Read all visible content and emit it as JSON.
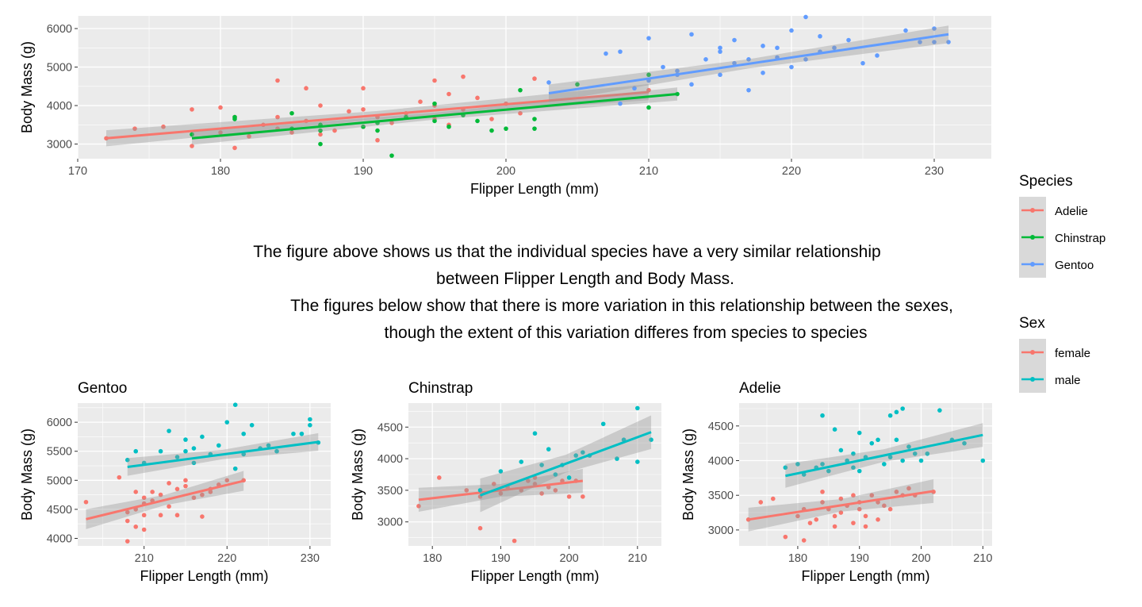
{
  "colors": {
    "panel_bg": "#EBEBEB",
    "grid": "#FFFFFF",
    "ribbon": "#999999",
    "tick": "#4D4D4D",
    "Adelie": "#F8766D",
    "Chinstrap": "#00BA38",
    "Gentoo": "#619CFF",
    "female": "#F8766D",
    "male": "#00BFC4"
  },
  "caption": {
    "lines": [
      "The figure above shows us that the individual species have a very similar relationship",
      "between Flipper Length and Body Mass.",
      "The figures below show that there is more variation in this relationship between the sexes,",
      "though the extent of this variation differes from species to species"
    ]
  },
  "legends": {
    "species": {
      "title": "Species",
      "items": [
        "Adelie",
        "Chinstrap",
        "Gentoo"
      ]
    },
    "sex": {
      "title": "Sex",
      "items": [
        "female",
        "male"
      ]
    }
  },
  "chart_data": [
    {
      "type": "scatter",
      "title": "",
      "xlabel": "Flipper Length (mm)",
      "ylabel": "Body Mass (g)",
      "xlim": [
        170,
        234
      ],
      "ylim": [
        2620,
        6330
      ],
      "xticks": [
        170,
        180,
        190,
        200,
        210,
        220,
        230
      ],
      "yticks": [
        3000,
        4000,
        5000,
        6000
      ],
      "grid": true,
      "legend": "right",
      "series": [
        {
          "name": "Adelie",
          "color_key": "Adelie",
          "trend": [
            [
              172,
              3150
            ],
            [
              210,
              4350
            ]
          ],
          "band": 110,
          "x": [
            172,
            174,
            176,
            178,
            178,
            180,
            180,
            181,
            181,
            182,
            183,
            184,
            184,
            184,
            185,
            186,
            186,
            187,
            187,
            188,
            189,
            190,
            190,
            190,
            191,
            191,
            192,
            193,
            194,
            195,
            195,
            195,
            196,
            196,
            197,
            197,
            198,
            199,
            200,
            201,
            202,
            210
          ],
          "y": [
            3150,
            3400,
            3450,
            3900,
            2950,
            3950,
            3300,
            3700,
            2900,
            3200,
            3500,
            3400,
            4650,
            3700,
            3300,
            4450,
            3600,
            3250,
            4000,
            3350,
            3850,
            3900,
            3450,
            4450,
            3700,
            3100,
            3550,
            3800,
            4100,
            3650,
            4650,
            4000,
            4300,
            3500,
            4750,
            3900,
            4200,
            3650,
            4050,
            3800,
            4700,
            4400
          ]
        },
        {
          "name": "Chinstrap",
          "color_key": "Chinstrap",
          "trend": [
            [
              178,
              3150
            ],
            [
              212,
              4300
            ]
          ],
          "band": 90,
          "x": [
            178,
            181,
            181,
            185,
            185,
            187,
            187,
            187,
            190,
            191,
            191,
            192,
            193,
            195,
            195,
            196,
            197,
            198,
            199,
            200,
            201,
            202,
            202,
            205,
            210,
            210,
            212
          ],
          "y": [
            3250,
            3700,
            3650,
            3800,
            3400,
            3350,
            3000,
            3500,
            3450,
            3550,
            3350,
            2700,
            3700,
            3600,
            4050,
            3450,
            3750,
            3600,
            3350,
            3400,
            4400,
            3650,
            3400,
            4550,
            4800,
            3950,
            4300
          ]
        },
        {
          "name": "Gentoo",
          "color_key": "Gentoo",
          "trend": [
            [
              203,
              4320
            ],
            [
              231,
              5850
            ]
          ],
          "band": 120,
          "x": [
            203,
            207,
            208,
            208,
            209,
            210,
            210,
            211,
            212,
            212,
            213,
            213,
            214,
            215,
            215,
            215,
            216,
            216,
            217,
            217,
            218,
            218,
            219,
            219,
            220,
            220,
            221,
            221,
            222,
            222,
            223,
            224,
            225,
            226,
            228,
            229,
            230,
            230,
            231
          ],
          "y": [
            4600,
            5350,
            4050,
            5400,
            4450,
            4650,
            5750,
            5000,
            4800,
            4900,
            5850,
            4550,
            5200,
            5500,
            4800,
            5400,
            5100,
            5700,
            4400,
            5200,
            4850,
            5550,
            5250,
            5500,
            5000,
            5950,
            6300,
            5200,
            5400,
            5800,
            5500,
            5700,
            5100,
            5300,
            5950,
            5650,
            6000,
            5650,
            5650
          ]
        }
      ]
    },
    {
      "type": "scatter",
      "title": "Gentoo",
      "xlabel": "Flipper Length (mm)",
      "ylabel": "Body Mass (g)",
      "xlim": [
        202,
        232.5
      ],
      "ylim": [
        3870,
        6330
      ],
      "xticks": [
        210,
        220,
        230
      ],
      "yticks": [
        4000,
        4500,
        5000,
        5500,
        6000
      ],
      "grid": true,
      "series": [
        {
          "name": "female",
          "color_key": "female",
          "trend": [
            [
              203,
              4330
            ],
            [
              222,
              4990
            ]
          ],
          "band": 90,
          "x": [
            203,
            207,
            208,
            208,
            208,
            209,
            209,
            209,
            210,
            210,
            210,
            210,
            211,
            211,
            212,
            212,
            213,
            213,
            214,
            214,
            215,
            215,
            216,
            217,
            217,
            218,
            218,
            219,
            220,
            221,
            222
          ],
          "y": [
            4625,
            5050,
            4450,
            4300,
            3950,
            4800,
            4500,
            4200,
            4700,
            4400,
            4150,
            4600,
            4650,
            4800,
            4400,
            4750,
            4950,
            4550,
            4850,
            4400,
            4900,
            5000,
            4700,
            4375,
            4750,
            4800,
            4850,
            4925,
            5000,
            5200,
            5000
          ]
        },
        {
          "name": "male",
          "color_key": "male",
          "trend": [
            [
              208,
              5230
            ],
            [
              231,
              5660
            ]
          ],
          "band": 80,
          "x": [
            208,
            209,
            210,
            212,
            213,
            214,
            215,
            215,
            216,
            216,
            217,
            218,
            219,
            220,
            221,
            221,
            222,
            222,
            223,
            224,
            225,
            226,
            228,
            229,
            230,
            230,
            231
          ],
          "y": [
            5350,
            5500,
            5300,
            5500,
            5850,
            5400,
            5500,
            5700,
            5550,
            5300,
            5750,
            5450,
            5600,
            6000,
            6300,
            5200,
            5450,
            5800,
            5950,
            5550,
            5600,
            5500,
            5800,
            5800,
            6050,
            5950,
            5650
          ]
        }
      ]
    },
    {
      "type": "scatter",
      "title": "Chinstrap",
      "xlabel": "Flipper Length (mm)",
      "ylabel": "Body Mass (g)",
      "xlim": [
        176.5,
        213.5
      ],
      "ylim": [
        2620,
        4880
      ],
      "xticks": [
        180,
        190,
        200,
        210
      ],
      "yticks": [
        3000,
        3500,
        4000,
        4500
      ],
      "grid": true,
      "series": [
        {
          "name": "female",
          "color_key": "female",
          "trend": [
            [
              178,
              3350
            ],
            [
              202,
              3650
            ]
          ],
          "band": 100,
          "x": [
            178,
            181,
            185,
            187,
            187,
            189,
            190,
            191,
            192,
            193,
            194,
            195,
            195,
            196,
            197,
            198,
            199,
            200,
            201,
            202
          ],
          "y": [
            3250,
            3700,
            3500,
            3400,
            2900,
            3600,
            3450,
            3550,
            2700,
            3500,
            3650,
            3600,
            3700,
            3450,
            3550,
            3500,
            3650,
            3400,
            3650,
            3400
          ]
        },
        {
          "name": "male",
          "color_key": "male",
          "trend": [
            [
              187,
              3420
            ],
            [
              212,
              4420
            ]
          ],
          "band": 140,
          "x": [
            187,
            190,
            193,
            195,
            196,
            197,
            198,
            199,
            200,
            201,
            202,
            203,
            205,
            207,
            208,
            210,
            210,
            212
          ],
          "y": [
            3500,
            3800,
            3950,
            4400,
            3900,
            4150,
            3750,
            3900,
            3700,
            4050,
            4100,
            4050,
            4550,
            4000,
            4300,
            4800,
            3950,
            4300
          ]
        }
      ]
    },
    {
      "type": "scatter",
      "title": "Adelie",
      "xlabel": "Flipper Length (mm)",
      "ylabel": "Body Mass (g)",
      "xlim": [
        170.5,
        211.5
      ],
      "ylim": [
        2770,
        4830
      ],
      "xticks": [
        180,
        190,
        200,
        210
      ],
      "yticks": [
        3000,
        3500,
        4000,
        4500
      ],
      "grid": true,
      "series": [
        {
          "name": "female",
          "color_key": "female",
          "trend": [
            [
              172,
              3150
            ],
            [
              202,
              3560
            ]
          ],
          "band": 90,
          "x": [
            172,
            174,
            176,
            178,
            180,
            181,
            181,
            182,
            183,
            184,
            184,
            185,
            186,
            186,
            187,
            187,
            188,
            189,
            189,
            190,
            190,
            191,
            191,
            192,
            193,
            193,
            194,
            195,
            196,
            197,
            198,
            199,
            202
          ],
          "y": [
            3150,
            3400,
            3450,
            2900,
            3200,
            2850,
            3300,
            3100,
            3150,
            3400,
            3550,
            3300,
            3200,
            3050,
            3250,
            3450,
            3350,
            3500,
            3100,
            3300,
            3400,
            3200,
            3050,
            3500,
            3400,
            3150,
            3350,
            3300,
            3550,
            3500,
            3600,
            3500,
            3550
          ]
        },
        {
          "name": "male",
          "color_key": "male",
          "trend": [
            [
              178,
              3780
            ],
            [
              210,
              4370
            ]
          ],
          "band": 90,
          "x": [
            178,
            180,
            181,
            183,
            184,
            184,
            185,
            186,
            187,
            188,
            189,
            189,
            190,
            190,
            191,
            192,
            193,
            194,
            195,
            195,
            196,
            196,
            197,
            197,
            198,
            199,
            200,
            201,
            203,
            205,
            207,
            210
          ],
          "y": [
            3900,
            3950,
            3800,
            3900,
            4650,
            3950,
            3850,
            4450,
            4150,
            4000,
            3900,
            4100,
            4400,
            3850,
            4050,
            4250,
            4300,
            3950,
            4650,
            4050,
            4700,
            4300,
            4750,
            4000,
            4200,
            4100,
            4000,
            4100,
            4725,
            4300,
            4250,
            4000
          ]
        }
      ]
    }
  ]
}
